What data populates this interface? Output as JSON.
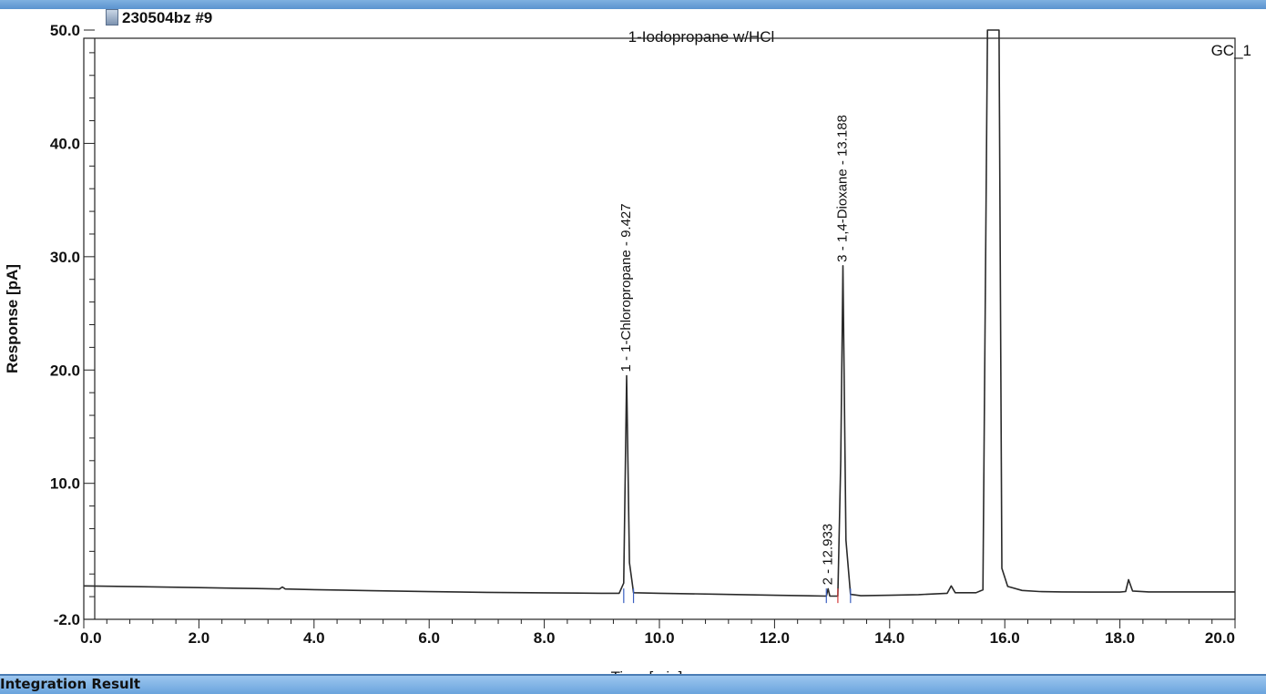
{
  "header": {
    "sample_name": "230504bz #9",
    "sample_icon": "document-icon",
    "channel": "GC_1"
  },
  "footer": {
    "panel_title": "Integration Result"
  },
  "colors": {
    "trace": "#2a2a2a",
    "peak_label": "#111111",
    "baseline_marker_blue": "#3a5fc0",
    "baseline_marker_red": "#d23a3a",
    "top_strip": "#6aa4dd"
  },
  "chart_data": {
    "type": "line",
    "title": "1-Iodopropane w/HCl",
    "xlabel": "Time [min]",
    "ylabel": "Response [pA]",
    "xlim": [
      0.0,
      20.0
    ],
    "ylim": [
      -2.0,
      50.0
    ],
    "x_ticks": [
      "0.0",
      "2.0",
      "4.0",
      "6.0",
      "8.0",
      "10.0",
      "12.0",
      "14.0",
      "16.0",
      "18.0",
      "20.0"
    ],
    "y_ticks": [
      "-2.0",
      "10.0",
      "20.0",
      "30.0",
      "40.0",
      "50.0"
    ],
    "grid": false,
    "series": [
      {
        "points": [
          [
            0.0,
            0.95
          ],
          [
            1.0,
            0.88
          ],
          [
            2.0,
            0.8
          ],
          [
            3.0,
            0.72
          ],
          [
            3.4,
            0.68
          ],
          [
            3.45,
            0.85
          ],
          [
            3.5,
            0.68
          ],
          [
            4.0,
            0.62
          ],
          [
            5.0,
            0.52
          ],
          [
            6.0,
            0.44
          ],
          [
            7.0,
            0.38
          ],
          [
            8.0,
            0.34
          ],
          [
            9.0,
            0.3
          ],
          [
            9.3,
            0.3
          ],
          [
            9.38,
            1.2
          ],
          [
            9.43,
            19.5
          ],
          [
            9.48,
            3.0
          ],
          [
            9.55,
            0.35
          ],
          [
            10.0,
            0.3
          ],
          [
            11.0,
            0.22
          ],
          [
            12.0,
            0.12
          ],
          [
            12.9,
            0.05
          ],
          [
            12.93,
            0.7
          ],
          [
            12.96,
            0.05
          ],
          [
            13.1,
            0.05
          ],
          [
            13.15,
            12.0
          ],
          [
            13.188,
            29.2
          ],
          [
            13.24,
            5.0
          ],
          [
            13.32,
            0.2
          ],
          [
            13.5,
            0.08
          ],
          [
            14.0,
            0.12
          ],
          [
            14.5,
            0.18
          ],
          [
            15.0,
            0.3
          ],
          [
            15.07,
            0.95
          ],
          [
            15.14,
            0.35
          ],
          [
            15.5,
            0.35
          ],
          [
            15.62,
            0.6
          ],
          [
            15.7,
            50.0
          ],
          [
            15.9,
            50.0
          ],
          [
            15.95,
            2.5
          ],
          [
            16.05,
            0.9
          ],
          [
            16.3,
            0.55
          ],
          [
            16.6,
            0.45
          ],
          [
            17.0,
            0.42
          ],
          [
            17.5,
            0.4
          ],
          [
            18.0,
            0.4
          ],
          [
            18.1,
            0.45
          ],
          [
            18.15,
            1.5
          ],
          [
            18.22,
            0.5
          ],
          [
            18.5,
            0.42
          ],
          [
            19.0,
            0.42
          ],
          [
            20.0,
            0.42
          ]
        ]
      }
    ],
    "peak_labels": [
      {
        "text": "1 - 1-Chloropropane - 9.427",
        "x": 9.427,
        "y": 19.5
      },
      {
        "text": "2 - 12.933",
        "x": 12.933,
        "y": 0.7
      },
      {
        "text": "3 - 1,4-Dioxane - 13.188",
        "x": 13.188,
        "y": 29.2
      }
    ],
    "baseline_markers": [
      {
        "x": 9.38,
        "color": "blue"
      },
      {
        "x": 9.55,
        "color": "blue"
      },
      {
        "x": 12.9,
        "color": "blue"
      },
      {
        "x": 13.1,
        "color": "red"
      },
      {
        "x": 13.32,
        "color": "blue"
      }
    ]
  }
}
